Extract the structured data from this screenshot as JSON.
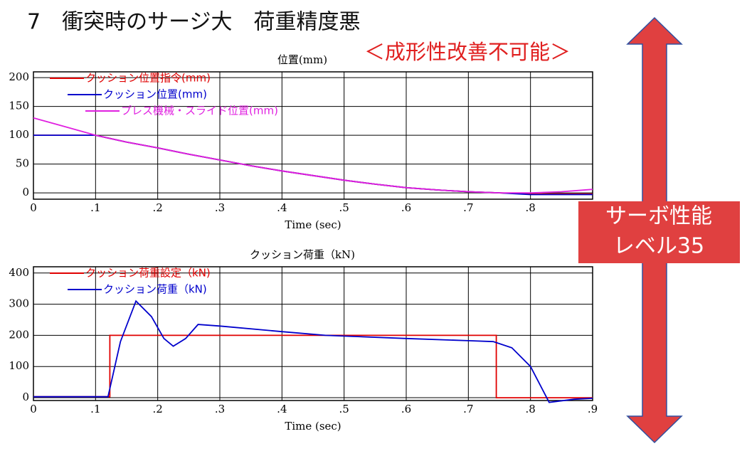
{
  "title": "7　衝突時のサージ大　荷重精度悪",
  "subtitle": "＜成形性改善不可能＞",
  "badge": {
    "lines": [
      "サーボ性能",
      "レベル35"
    ]
  },
  "chart_data": [
    {
      "type": "line",
      "title": "位置(mm)",
      "x_label": "Time (sec)",
      "xlim": [
        0,
        0.9
      ],
      "ylim": [
        -11,
        210
      ],
      "xticks": [
        0,
        {
          "value": 0.1,
          "label": ".1"
        },
        {
          "value": 0.2,
          "label": ".2"
        },
        {
          "value": 0.3,
          "label": ".3"
        },
        {
          "value": 0.4,
          "label": ".4"
        },
        {
          "value": 0.5,
          "label": ".5"
        },
        {
          "value": 0.6,
          "label": ".6"
        },
        {
          "value": 0.7,
          "label": ".7"
        },
        {
          "value": 0.8,
          "label": ".8"
        },
        {
          "value": 0.9,
          "label": ".9"
        }
      ],
      "yticks": [
        0,
        50,
        100,
        150,
        200
      ],
      "grid": true,
      "legend": "upper left",
      "x": [
        0,
        0.05,
        0.1,
        0.15,
        0.2,
        0.25,
        0.3,
        0.35,
        0.4,
        0.45,
        0.5,
        0.55,
        0.6,
        0.65,
        0.7,
        0.75,
        0.8,
        0.85,
        0.9
      ],
      "series": [
        {
          "name": "クッション位置指令(mm)",
          "color": "#e00000",
          "values": [
            100,
            100,
            100,
            88,
            78,
            67,
            57,
            47,
            38,
            30,
            22,
            15,
            9,
            5,
            2,
            0,
            -2,
            -2,
            -2
          ]
        },
        {
          "name": "クッション位置(mm)",
          "color": "#0000cc",
          "values": [
            100,
            100,
            100,
            88,
            78,
            67,
            57,
            47,
            38,
            30,
            22,
            15,
            9,
            5,
            2,
            0,
            -3,
            -3,
            -3
          ]
        },
        {
          "name": "プレス機械・スライド位置(mm)",
          "color": "#e020e0",
          "values": [
            130,
            115,
            100,
            88,
            78,
            67,
            57,
            47,
            38,
            30,
            22,
            15,
            9,
            5,
            2,
            0,
            0,
            2,
            6
          ]
        }
      ]
    },
    {
      "type": "line",
      "title": "クッション荷重（kN)",
      "x_label": "Time (sec)",
      "xlim": [
        0,
        0.9
      ],
      "ylim": [
        -9,
        420
      ],
      "xticks": [
        0,
        {
          "value": 0.1,
          "label": ".1"
        },
        {
          "value": 0.2,
          "label": ".2"
        },
        {
          "value": 0.3,
          "label": ".3"
        },
        {
          "value": 0.4,
          "label": ".4"
        },
        {
          "value": 0.5,
          "label": ".5"
        },
        {
          "value": 0.6,
          "label": ".6"
        },
        {
          "value": 0.7,
          "label": ".7"
        },
        {
          "value": 0.8,
          "label": ".8"
        },
        {
          "value": 0.9,
          "label": ".9"
        }
      ],
      "yticks": [
        0,
        100,
        200,
        300,
        400
      ],
      "grid": true,
      "legend": "upper left",
      "series": [
        {
          "name": "クッション荷重設定（kN)",
          "color": "#e00000",
          "x": [
            0,
            0.123,
            0.123,
            0.745,
            0.745,
            0.9
          ],
          "values": [
            3,
            3,
            200,
            200,
            0,
            0
          ]
        },
        {
          "name": "クッション荷重（kN)",
          "color": "#0000cc",
          "x": [
            0,
            0.12,
            0.14,
            0.165,
            0.19,
            0.21,
            0.225,
            0.245,
            0.265,
            0.3,
            0.4,
            0.47,
            0.6,
            0.7,
            0.74,
            0.77,
            0.8,
            0.83,
            0.87,
            0.9
          ],
          "values": [
            3,
            3,
            180,
            310,
            260,
            190,
            165,
            190,
            235,
            230,
            212,
            200,
            190,
            183,
            180,
            160,
            100,
            -15,
            -5,
            -2
          ]
        }
      ]
    }
  ]
}
